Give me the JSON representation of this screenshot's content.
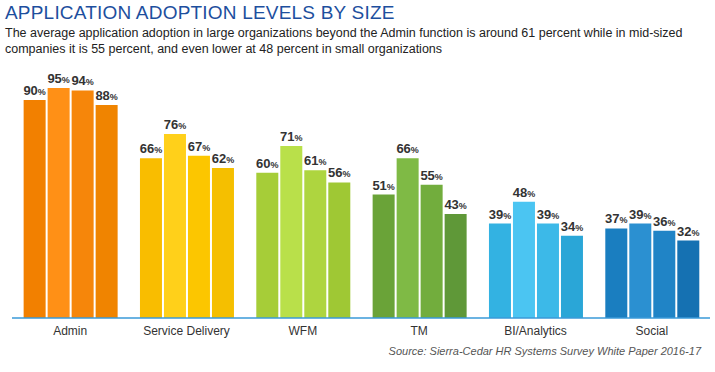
{
  "chart_data": {
    "type": "bar",
    "title": "APPLICATION ADOPTION LEVELS BY SIZE",
    "subtitle": "The average application adoption in large organizations beyond the Admin function is around 61 percent while in mid-sized companies it is 55 percent, and even lower at 48 percent in small organizations",
    "annotations": [
      "Source: Sierra-Cedar HR Systems Survey White Paper 2016-17"
    ],
    "categories": [
      "Admin",
      "Service Delivery",
      "WFM",
      "TM",
      "BI/Analytics",
      "Social"
    ],
    "series": [
      {
        "colors": [
          "#f28000",
          "#f9bd00",
          "#a6cd38",
          "#6aa338",
          "#33b2e2",
          "#1a7ec0"
        ],
        "values": [
          90,
          66,
          60,
          51,
          39,
          37
        ],
        "value_labels": [
          "90%",
          "66%",
          "60%",
          "51%",
          "39%",
          "37%"
        ]
      },
      {
        "colors": [
          "#ff9016",
          "#ffd01a",
          "#b9e04a",
          "#7fba45",
          "#4bc5f2",
          "#2b90d1"
        ],
        "values": [
          95,
          76,
          71,
          66,
          48,
          39
        ],
        "value_labels": [
          "95%",
          "76%",
          "71%",
          "66%",
          "48%",
          "39%"
        ]
      },
      {
        "colors": [
          "#f6860a",
          "#fcc600",
          "#aed53f",
          "#72ad3d",
          "#3cb9e8",
          "#2084c6"
        ],
        "values": [
          94,
          67,
          61,
          55,
          39,
          36
        ],
        "value_labels": [
          "94%",
          "67%",
          "61%",
          "55%",
          "39%",
          "36%"
        ]
      },
      {
        "colors": [
          "#f08400",
          "#f5bf00",
          "#9fc834",
          "#5f9838",
          "#2aa6d7",
          "#1571b2"
        ],
        "values": [
          88,
          62,
          56,
          43,
          34,
          32
        ],
        "value_labels": [
          "88%",
          "62%",
          "56%",
          "43%",
          "34%",
          "32%"
        ]
      }
    ],
    "data_labels": true,
    "tick_labels": "x"
  }
}
